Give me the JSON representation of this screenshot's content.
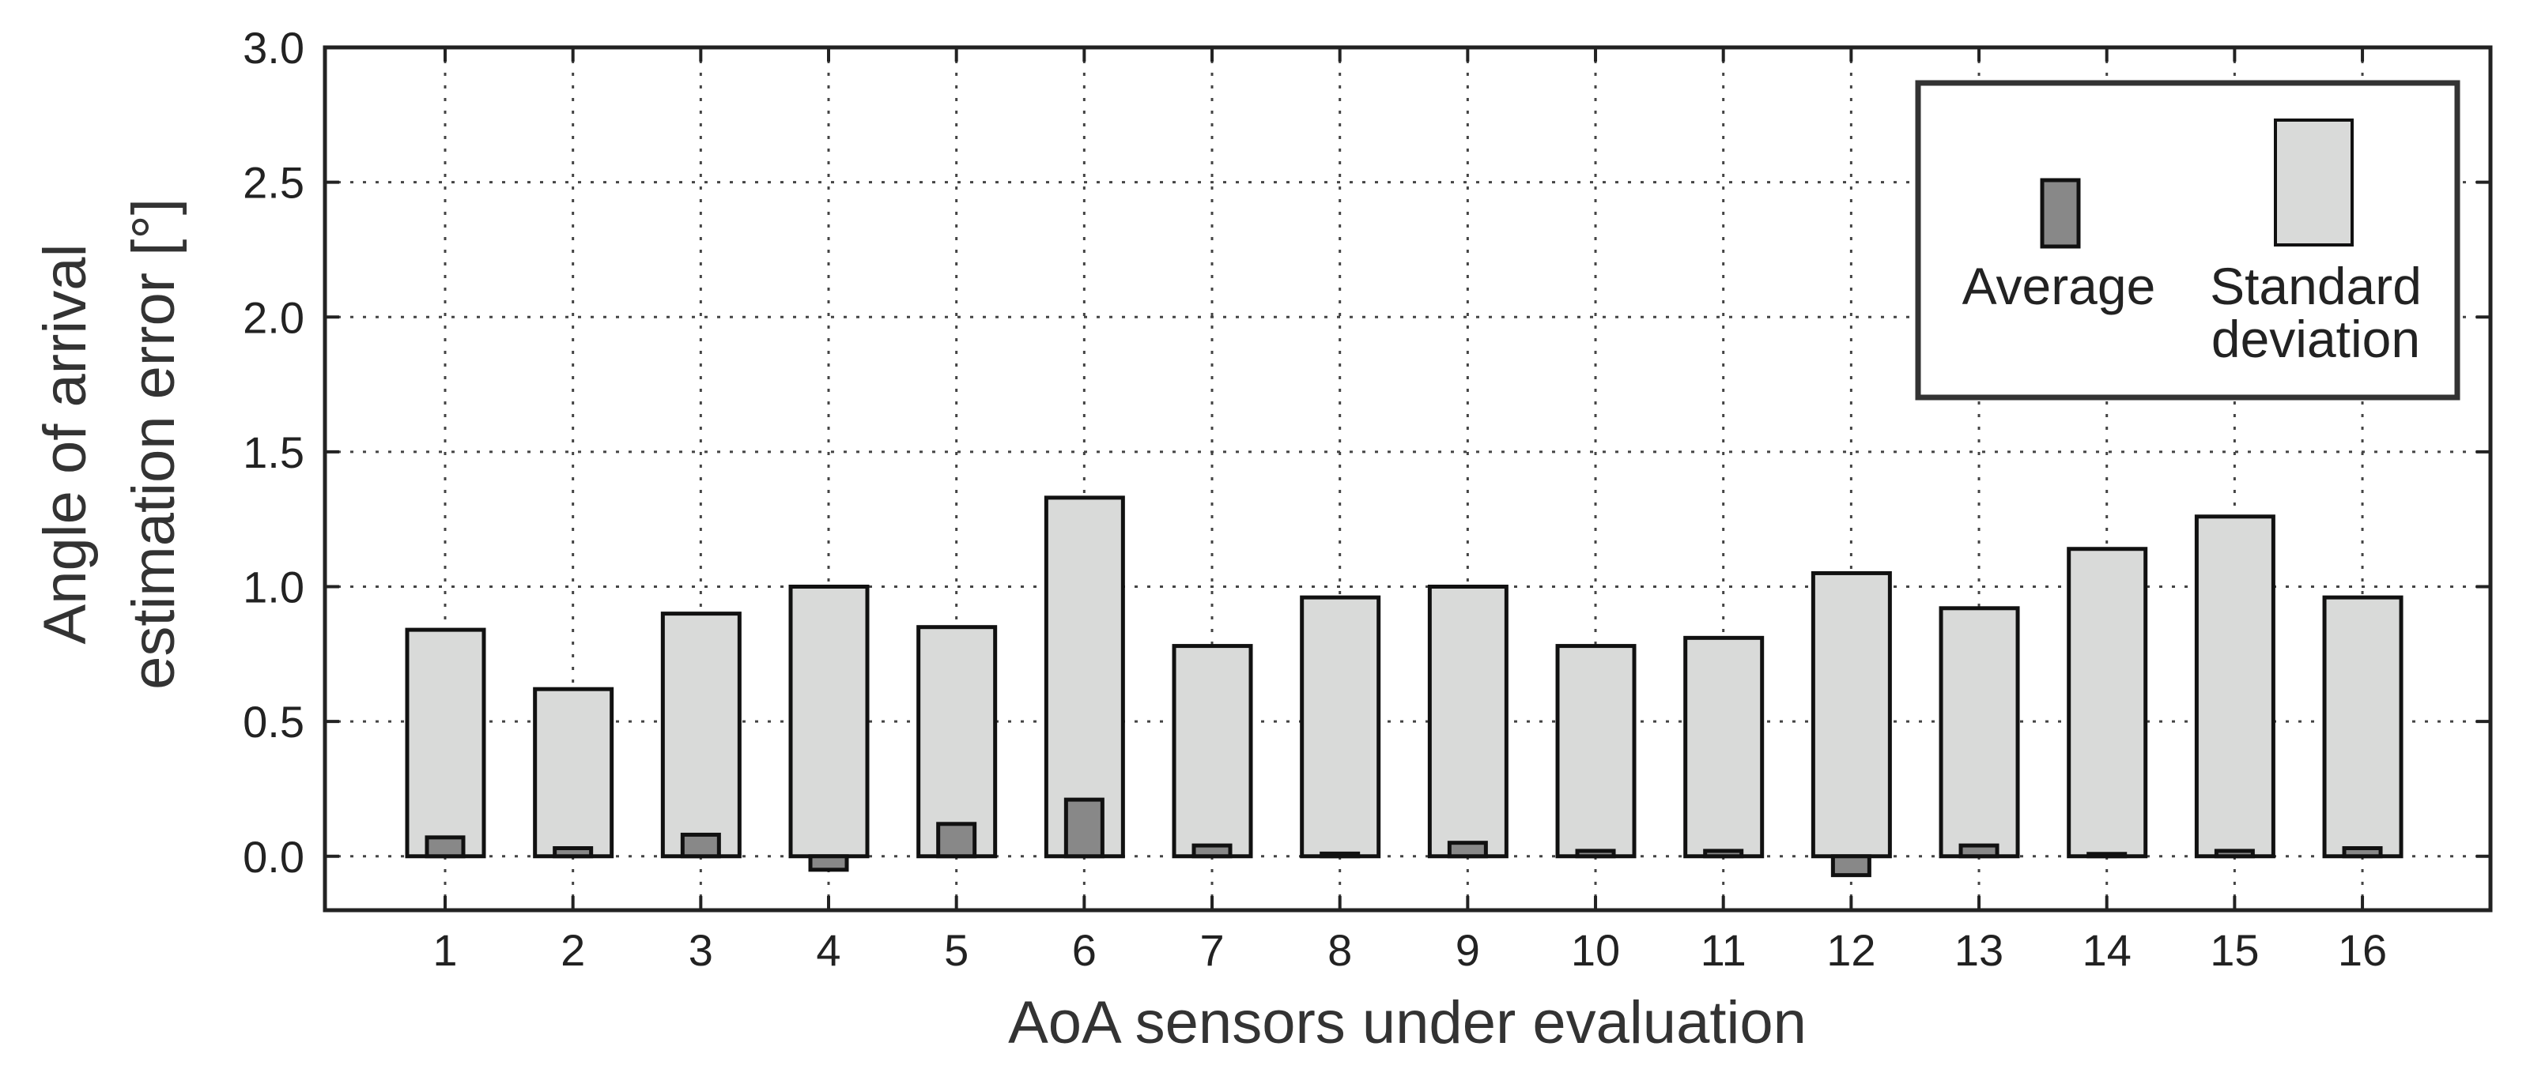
{
  "chart_data": {
    "type": "bar",
    "title": "",
    "xlabel": "AoA sensors under evaluation",
    "ylabel_line1": "Angle of arrival",
    "ylabel_line2": "estimation error [°]",
    "ylim": [
      -0.2,
      3.0
    ],
    "yticks": [
      0.0,
      0.5,
      1.0,
      1.5,
      2.0,
      2.5,
      3.0
    ],
    "ytick_labels": [
      "0.0",
      "0.5",
      "1.0",
      "1.5",
      "2.0",
      "2.5",
      "3.0"
    ],
    "categories": [
      "1",
      "2",
      "3",
      "4",
      "5",
      "6",
      "7",
      "8",
      "9",
      "10",
      "11",
      "12",
      "13",
      "14",
      "15",
      "16"
    ],
    "grid": true,
    "legend_position": "top-right",
    "series": [
      {
        "name": "Standard deviation",
        "legend_line1": "Standard",
        "legend_line2": "deviation",
        "color": "#d9dad9",
        "values": [
          0.84,
          0.62,
          0.9,
          1.0,
          0.85,
          1.33,
          0.78,
          0.96,
          1.0,
          0.78,
          0.81,
          1.05,
          0.92,
          1.14,
          1.26,
          0.96
        ]
      },
      {
        "name": "Average",
        "legend_line1": "Average",
        "color": "#888888",
        "values": [
          0.07,
          0.03,
          0.08,
          -0.05,
          0.12,
          0.21,
          0.04,
          0.01,
          0.05,
          0.02,
          0.02,
          -0.07,
          0.04,
          0.0,
          0.02,
          0.03
        ]
      }
    ]
  }
}
